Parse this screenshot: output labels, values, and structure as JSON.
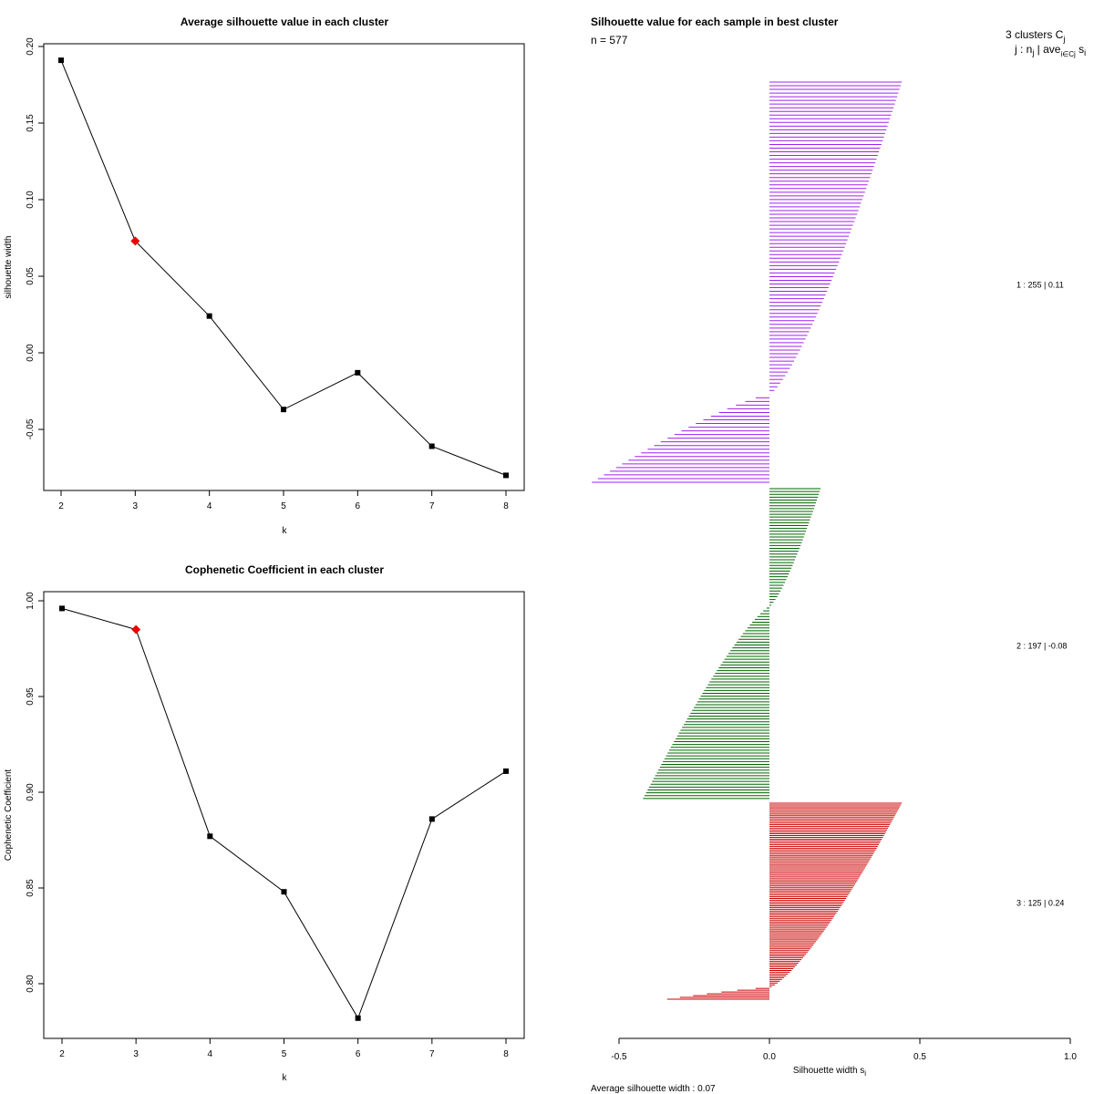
{
  "chart_data": [
    {
      "type": "line",
      "title": "Average silhouette value in each cluster",
      "xlabel": "k",
      "ylabel": "silhouette width",
      "x": [
        2,
        3,
        4,
        5,
        6,
        7,
        8
      ],
      "values": [
        0.191,
        0.073,
        0.024,
        -0.037,
        -0.013,
        -0.061,
        -0.08
      ],
      "highlight_k": 3,
      "highlight_color": "#ee0000",
      "xlim": [
        2,
        8
      ],
      "ylim": [
        -0.09,
        0.2
      ],
      "xticks": [
        "2",
        "3",
        "4",
        "5",
        "6",
        "7",
        "8"
      ],
      "yticks": [
        "-0.05",
        "0.00",
        "0.05",
        "0.10",
        "0.15",
        "0.20"
      ]
    },
    {
      "type": "line",
      "title": "Cophenetic Coefficient in each cluster",
      "xlabel": "k",
      "ylabel": "Cophenetic Coefficient",
      "x": [
        2,
        3,
        4,
        5,
        6,
        7,
        8
      ],
      "values": [
        0.996,
        0.985,
        0.877,
        0.848,
        0.782,
        0.886,
        0.911
      ],
      "highlight_k": 3,
      "highlight_color": "#ee0000",
      "xlim": [
        2,
        8
      ],
      "ylim": [
        0.77,
        1.0
      ],
      "xticks": [
        "2",
        "3",
        "4",
        "5",
        "6",
        "7",
        "8"
      ],
      "yticks": [
        "0.80",
        "0.85",
        "0.90",
        "0.95",
        "1.00"
      ]
    },
    {
      "type": "bar",
      "orientation": "horizontal",
      "title": "Silhouette value for each sample in best cluster",
      "n_label": "n = 577",
      "xlabel": "Silhouette width s",
      "xlabel_sub": "i",
      "xlim": [
        -0.5,
        1.0
      ],
      "xticks": [
        "-0.5",
        "0.0",
        "0.5",
        "1.0"
      ],
      "avg_label": "Average silhouette width :  0.07",
      "legend_header": "3  clusters  C",
      "legend_header_sub": "j",
      "legend_sub": "j :  n",
      "legend_sub2": " | ave",
      "legend_sub3": "i∈Cj",
      "legend_sub4": " s",
      "legend_sub5": "i",
      "clusters": [
        {
          "label": "1 :   255  |  0.11",
          "n": 255,
          "max": 0.44,
          "min": -0.59,
          "color": "#a020f0",
          "neg_fraction": 0.22
        },
        {
          "label": "2 :   197  |  -0.08",
          "n": 197,
          "max": 0.17,
          "min": -0.42,
          "color": "#006400",
          "neg_fraction": 0.62
        },
        {
          "label": "3 :   125  |  0.24",
          "n": 125,
          "max": 0.44,
          "min": -0.34,
          "color": "#cc0000",
          "neg_fraction": 0.06
        }
      ]
    }
  ]
}
